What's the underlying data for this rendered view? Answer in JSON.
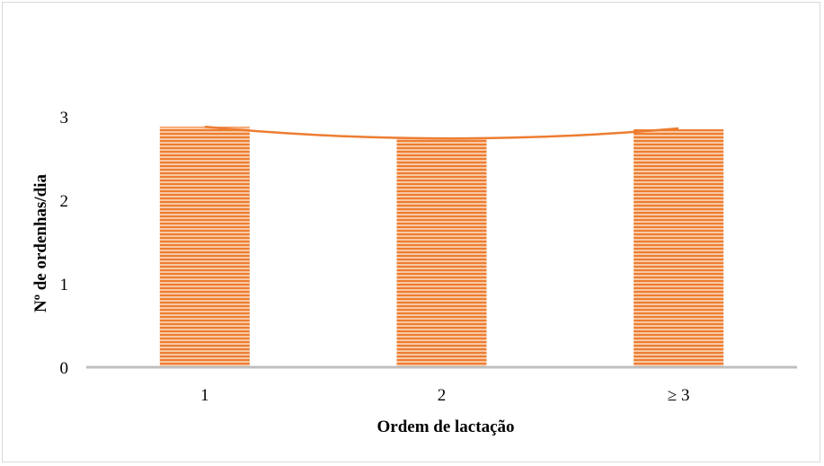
{
  "chart_data": {
    "type": "bar",
    "title": "",
    "xlabel": "Ordem de lactação",
    "ylabel": "Nº de ordenhas/dia",
    "categories": [
      "1",
      "2",
      "≥ 3"
    ],
    "series": [
      {
        "values": [
          2.88,
          2.75,
          2.85
        ]
      }
    ],
    "trendline": {
      "type": "polynomial",
      "values": [
        2.88,
        2.74,
        2.86
      ]
    },
    "ylim": [
      0,
      3
    ],
    "yticks": [
      "0",
      "1",
      "2",
      "3"
    ],
    "grid": false,
    "legend": "none",
    "colors": {
      "bar": "#f4b183",
      "bar_stripe": "#ed7d31",
      "trendline": "#ed7d31",
      "axis": "#bfbfbf"
    }
  }
}
